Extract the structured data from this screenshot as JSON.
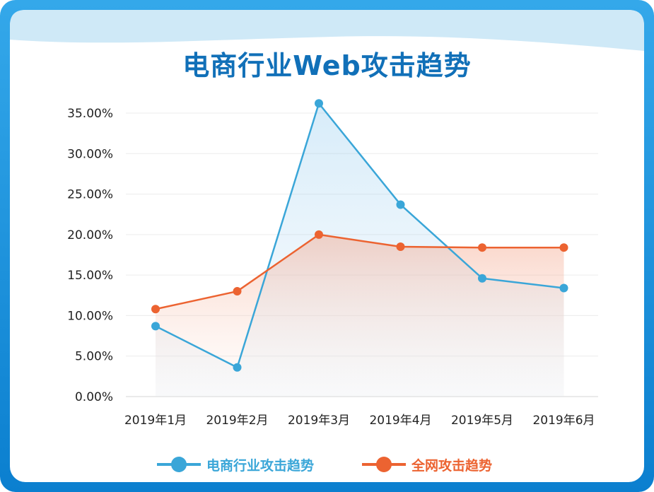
{
  "chart_data": {
    "type": "line",
    "title": "电商行业Web攻击趋势",
    "categories": [
      "2019年1月",
      "2019年2月",
      "2019年3月",
      "2019年4月",
      "2019年5月",
      "2019年6月"
    ],
    "series": [
      {
        "name": "电商行业攻击趋势",
        "color": "#3aa6d8",
        "values": [
          8.7,
          3.6,
          36.2,
          23.7,
          14.6,
          13.4
        ]
      },
      {
        "name": "全网攻击趋势",
        "color": "#ec6331",
        "values": [
          10.8,
          13.0,
          20.0,
          18.5,
          18.4,
          18.4
        ]
      }
    ],
    "y_ticks": [
      "0.00%",
      "5.00%",
      "10.00%",
      "15.00%",
      "20.00%",
      "25.00%",
      "30.00%",
      "35.00%"
    ],
    "ylim": [
      0,
      35
    ],
    "grid": true,
    "legend": "bottom"
  },
  "frame": {
    "border_color": "#1a8fd6",
    "wave_color": "#cfe9f7"
  }
}
